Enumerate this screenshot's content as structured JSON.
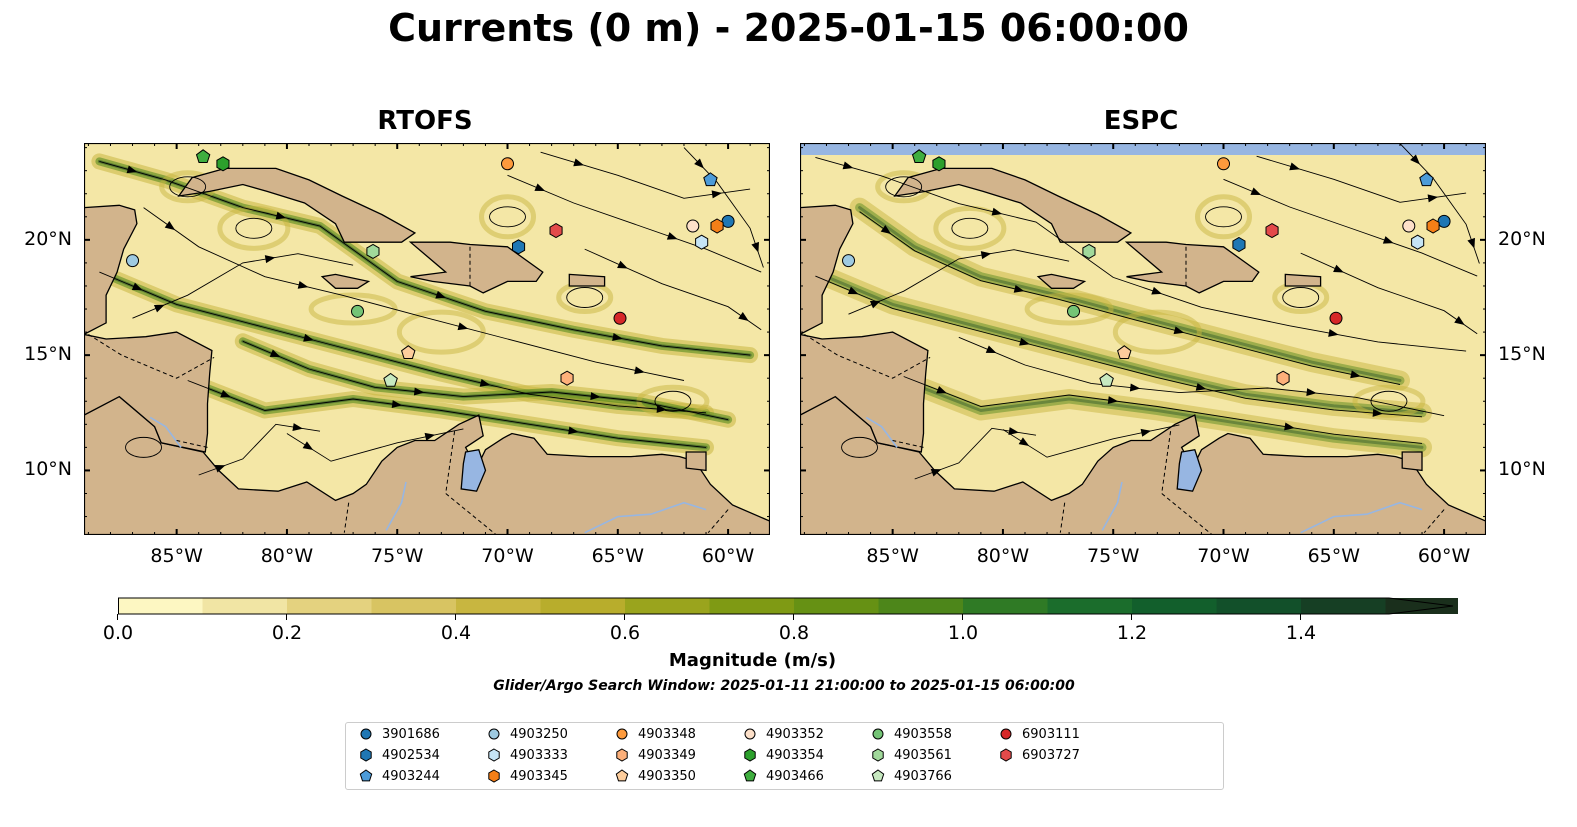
{
  "title": "Currents (0 m) - 2025-01-15 06:00:00",
  "panels": [
    {
      "title": "RTOFS"
    },
    {
      "title": "ESPC"
    }
  ],
  "axes": {
    "lon_ticks": [
      "85°W",
      "80°W",
      "75°W",
      "70°W",
      "65°W",
      "60°W"
    ],
    "lat_ticks": [
      "20°N",
      "15°N",
      "10°N"
    ]
  },
  "colorbar": {
    "label": "Magnitude (m/s)",
    "ticks": [
      "0.0",
      "0.2",
      "0.4",
      "0.6",
      "0.8",
      "1.0",
      "1.2",
      "1.4"
    ],
    "min": 0.0,
    "max": 1.6,
    "step": 0.1,
    "extend": "max",
    "colors": [
      "#fdf7c2",
      "#f1e5a4",
      "#e4d27f",
      "#d8c462",
      "#c8b640",
      "#b8ad2c",
      "#9aa41d",
      "#7f9a14",
      "#669114",
      "#4d861a",
      "#2f7a25",
      "#1b6d2c",
      "#125f2c",
      "#12502a",
      "#163f24",
      "#1a2f1c"
    ]
  },
  "search_window": "Glider/Argo Search Window: 2025-01-11 21:00:00 to 2025-01-15 06:00:00",
  "colors": {
    "land": "#d2b48c",
    "water_inland": "#97b6e2",
    "ocean_low": "#f4e7a6",
    "ocean_mid": "#c8b640",
    "ocean_high": "#4d861a",
    "ocean_peak": "#1f4a22"
  },
  "legend": {
    "items": [
      {
        "id": "3901686",
        "color": "#1f77b4",
        "marker": "circle"
      },
      {
        "id": "4902534",
        "color": "#1f77b4",
        "marker": "hexagon"
      },
      {
        "id": "4903244",
        "color": "#4c9bd8",
        "marker": "pentagon"
      },
      {
        "id": "4903250",
        "color": "#9ecae1",
        "marker": "circle"
      },
      {
        "id": "4903333",
        "color": "#c6e4f5",
        "marker": "hexagon"
      },
      {
        "id": "4903345",
        "color": "#f57f17",
        "marker": "hexagon"
      },
      {
        "id": "4903348",
        "color": "#fd9a3c",
        "marker": "circle"
      },
      {
        "id": "4903349",
        "color": "#fdb07a",
        "marker": "hexagon"
      },
      {
        "id": "4903350",
        "color": "#fdcd9c",
        "marker": "pentagon"
      },
      {
        "id": "4903352",
        "color": "#fde0c9",
        "marker": "circle"
      },
      {
        "id": "4903354",
        "color": "#2ca02c",
        "marker": "hexagon"
      },
      {
        "id": "4903466",
        "color": "#3fae3f",
        "marker": "pentagon"
      },
      {
        "id": "4903558",
        "color": "#74c476",
        "marker": "circle"
      },
      {
        "id": "4903561",
        "color": "#a1d99b",
        "marker": "hexagon"
      },
      {
        "id": "4903766",
        "color": "#c7e9c0",
        "marker": "pentagon"
      },
      {
        "id": "6903111",
        "color": "#d62728",
        "marker": "circle"
      },
      {
        "id": "6903727",
        "color": "#e34a4a",
        "marker": "hexagon"
      }
    ]
  },
  "floats": {
    "RTOFS": [
      {
        "id": "3901686",
        "lon": -60.0,
        "lat": 20.8
      },
      {
        "id": "4902534",
        "lon": -69.5,
        "lat": 19.7
      },
      {
        "id": "4903244",
        "lon": -60.8,
        "lat": 22.6
      },
      {
        "id": "4903250",
        "lon": -87.0,
        "lat": 19.1
      },
      {
        "id": "4903333",
        "lon": -61.2,
        "lat": 19.9
      },
      {
        "id": "4903345",
        "lon": -60.5,
        "lat": 20.6
      },
      {
        "id": "4903348",
        "lon": -70.0,
        "lat": 23.3
      },
      {
        "id": "4903349",
        "lon": -67.3,
        "lat": 14.0
      },
      {
        "id": "4903350",
        "lon": -74.5,
        "lat": 15.1
      },
      {
        "id": "4903352",
        "lon": -61.6,
        "lat": 20.6
      },
      {
        "id": "4903354",
        "lon": -82.9,
        "lat": 23.3
      },
      {
        "id": "4903466",
        "lon": -83.8,
        "lat": 23.6
      },
      {
        "id": "4903558",
        "lon": -76.8,
        "lat": 16.9
      },
      {
        "id": "4903561",
        "lon": -76.1,
        "lat": 19.5
      },
      {
        "id": "4903766",
        "lon": -75.3,
        "lat": 13.9
      },
      {
        "id": "6903111",
        "lon": -64.9,
        "lat": 16.6
      },
      {
        "id": "6903727",
        "lon": -67.8,
        "lat": 20.4
      }
    ],
    "ESPC": [
      {
        "id": "3901686",
        "lon": -60.0,
        "lat": 20.8
      },
      {
        "id": "4902534",
        "lon": -69.3,
        "lat": 19.8
      },
      {
        "id": "4903244",
        "lon": -60.8,
        "lat": 22.6
      },
      {
        "id": "4903250",
        "lon": -87.0,
        "lat": 19.1
      },
      {
        "id": "4903333",
        "lon": -61.2,
        "lat": 19.9
      },
      {
        "id": "4903345",
        "lon": -60.5,
        "lat": 20.6
      },
      {
        "id": "4903348",
        "lon": -70.0,
        "lat": 23.3
      },
      {
        "id": "4903349",
        "lon": -67.3,
        "lat": 14.0
      },
      {
        "id": "4903350",
        "lon": -74.5,
        "lat": 15.1
      },
      {
        "id": "4903352",
        "lon": -61.6,
        "lat": 20.6
      },
      {
        "id": "4903354",
        "lon": -82.9,
        "lat": 23.3
      },
      {
        "id": "4903466",
        "lon": -83.8,
        "lat": 23.6
      },
      {
        "id": "4903558",
        "lon": -76.8,
        "lat": 16.9
      },
      {
        "id": "4903561",
        "lon": -76.1,
        "lat": 19.5
      },
      {
        "id": "4903766",
        "lon": -75.3,
        "lat": 13.9
      },
      {
        "id": "6903111",
        "lon": -64.9,
        "lat": 16.6
      },
      {
        "id": "6903727",
        "lon": -67.8,
        "lat": 20.4
      }
    ]
  }
}
